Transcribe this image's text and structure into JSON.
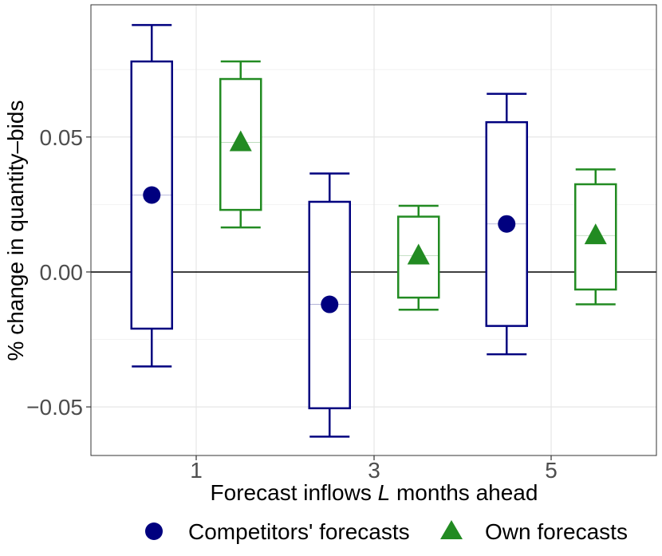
{
  "chart_data": {
    "type": "boxplot-errorbar",
    "title": "",
    "xlabel_pre": "Forecast inflows ",
    "xlabel_italic": "L",
    "xlabel_post": " months ahead",
    "ylabel": "% change in quantity–bids",
    "categories": [
      "1",
      "3",
      "5"
    ],
    "ylim": [
      -0.068,
      0.099
    ],
    "yticks": [
      -0.05,
      0.0,
      0.05
    ],
    "ytick_labels": [
      "−0.05",
      "0.00",
      "0.05"
    ],
    "reference_line": 0.0,
    "grid": true,
    "legend_position": "bottom",
    "series": [
      {
        "name": "Competitors' forecasts",
        "color": "#00007F",
        "marker": "circle",
        "offset": -0.25,
        "points": [
          {
            "category": "1",
            "estimate": 0.0285,
            "box_low": -0.021,
            "box_high": 0.078,
            "whisker_low": -0.035,
            "whisker_high": 0.0915
          },
          {
            "category": "3",
            "estimate": -0.012,
            "box_low": -0.0505,
            "box_high": 0.026,
            "whisker_low": -0.061,
            "whisker_high": 0.0365
          },
          {
            "category": "5",
            "estimate": 0.0178,
            "box_low": -0.02,
            "box_high": 0.0555,
            "whisker_low": -0.0305,
            "whisker_high": 0.066
          }
        ]
      },
      {
        "name": "Own forecasts",
        "color": "#228B22",
        "marker": "triangle",
        "offset": 0.25,
        "points": [
          {
            "category": "1",
            "estimate": 0.048,
            "box_low": 0.023,
            "box_high": 0.0715,
            "whisker_low": 0.0165,
            "whisker_high": 0.078
          },
          {
            "category": "3",
            "estimate": 0.006,
            "box_low": -0.0095,
            "box_high": 0.0205,
            "whisker_low": -0.014,
            "whisker_high": 0.0245
          },
          {
            "category": "5",
            "estimate": 0.0135,
            "box_low": -0.0065,
            "box_high": 0.0325,
            "whisker_low": -0.012,
            "whisker_high": 0.038
          }
        ]
      }
    ]
  }
}
